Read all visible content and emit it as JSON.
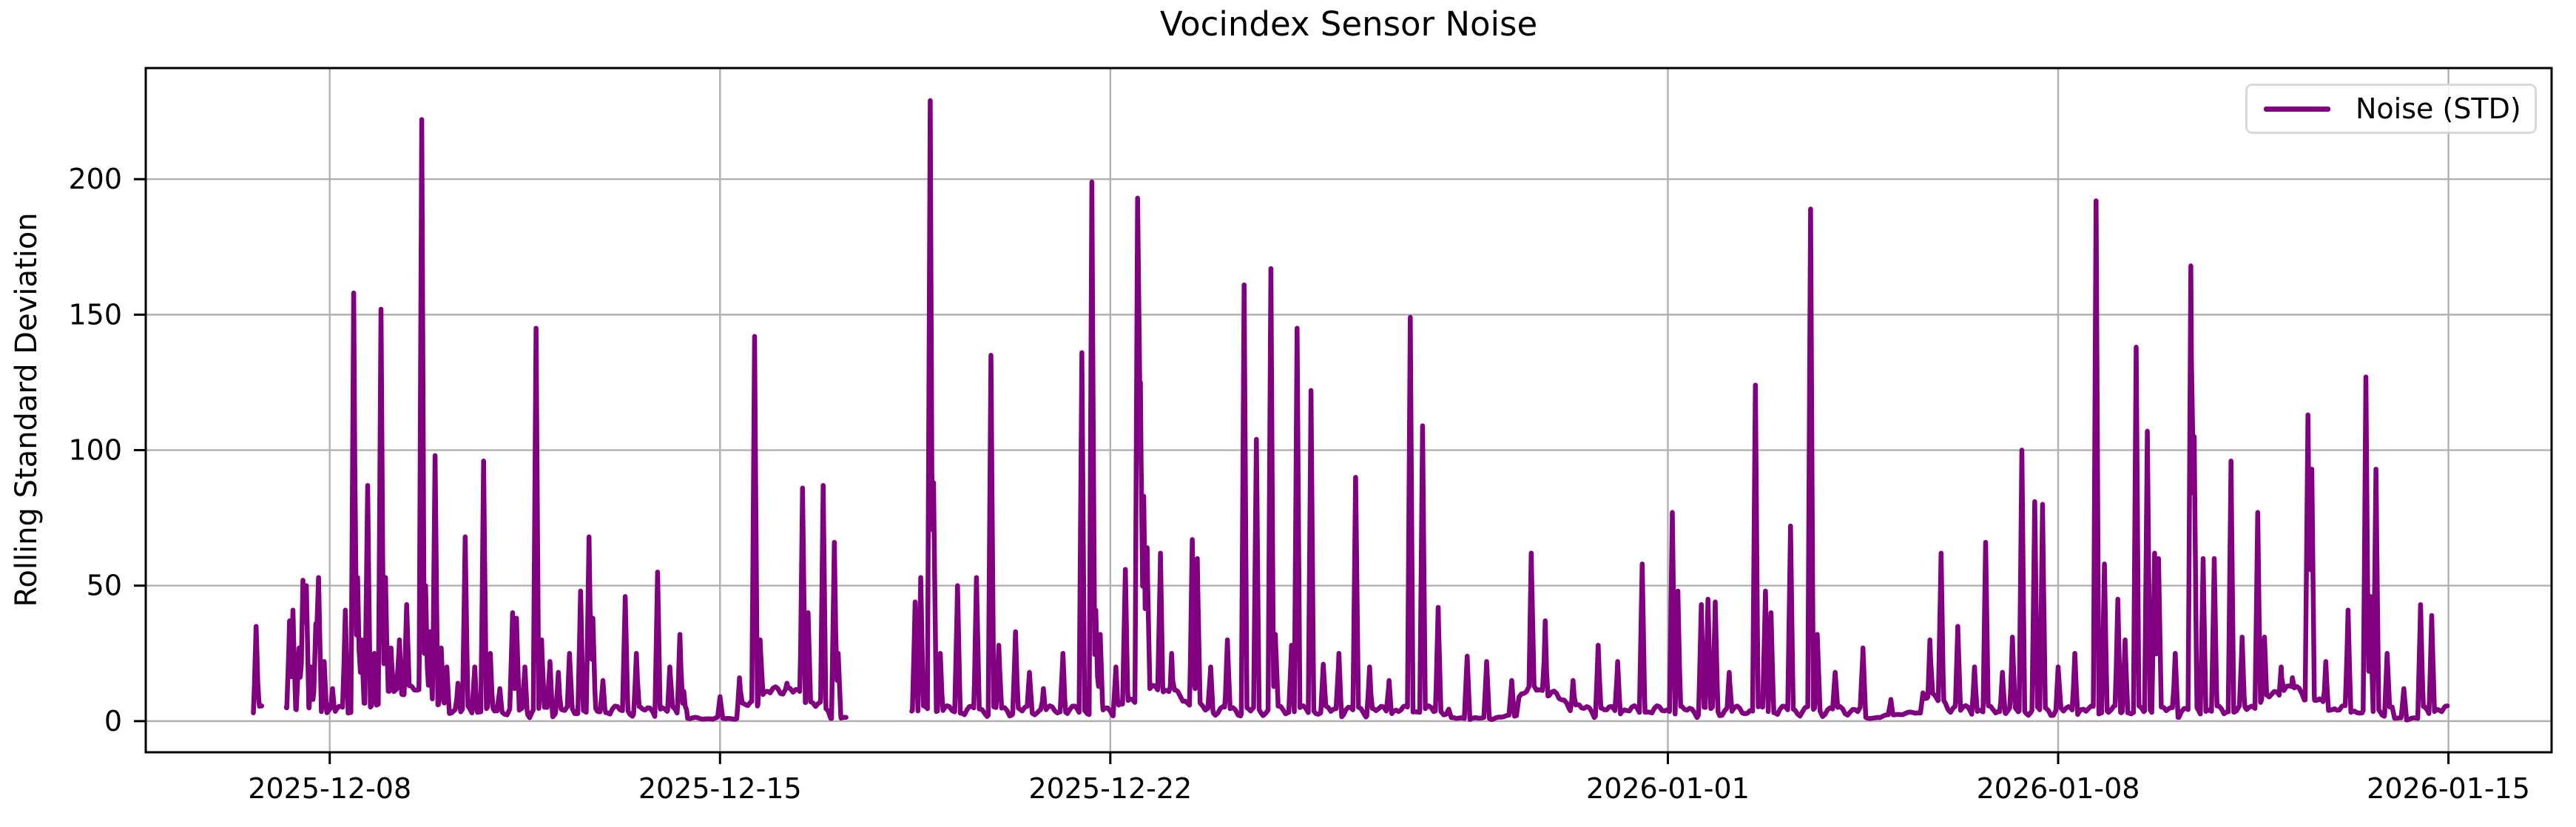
{
  "chart_data": {
    "type": "line",
    "title": "Vocindex Sensor Noise",
    "ylabel": "Rolling Standard Deviation",
    "xlabel": "",
    "legend": {
      "label": "Noise (STD)",
      "position": "upper right"
    },
    "line_color": "#800080",
    "grid": true,
    "grid_color": "#b0b0b0",
    "axis_color": "#000000",
    "background": "#ffffff",
    "x_axis": {
      "unit": "days relative to 2025-12-08",
      "min": -3.3,
      "max": 39.85,
      "ticks": [
        {
          "t": 0,
          "label": "2025-12-08"
        },
        {
          "t": 7,
          "label": "2025-12-15"
        },
        {
          "t": 14,
          "label": "2025-12-22"
        },
        {
          "t": 24,
          "label": "2026-01-01"
        },
        {
          "t": 31,
          "label": "2026-01-08"
        },
        {
          "t": 38,
          "label": "2026-01-15"
        }
      ]
    },
    "y_axis": {
      "min": -11.5,
      "max": 241,
      "ticks": [
        0,
        50,
        100,
        150,
        200
      ]
    },
    "series": [
      {
        "name": "Noise (STD)",
        "max_value": 229,
        "baseline_range": [
          0,
          10
        ],
        "sample_step_days": 0.045,
        "peak_half_width_days": 0.05,
        "segments": [
          [
            -1.35,
            -1.22
          ],
          [
            -0.78,
            9.26
          ],
          [
            10.44,
            37.95
          ]
        ],
        "quiet_ranges": [
          [
            6.4,
            7.3
          ],
          [
            8.95,
            9.26
          ],
          [
            20.1,
            21.3
          ],
          [
            27.55,
            28.55
          ],
          [
            37.0,
            37.45
          ]
        ],
        "baseline_model": {
          "base": 1.0,
          "a1": 2.6,
          "f1": 6.9,
          "p1": 0.5,
          "a2": 2.1,
          "f2": 15.3,
          "p2": 1.7,
          "bump_amp": 8,
          "bump_freq": 0.93,
          "bump_phase": 0.3,
          "bump_pow": 8,
          "quiet_factor": 0.25,
          "min": 0.4
        },
        "peaks": [
          [
            -1.32,
            35
          ],
          [
            -1.29,
            12
          ],
          [
            -0.72,
            37
          ],
          [
            -0.66,
            41
          ],
          [
            -0.55,
            27
          ],
          [
            -0.48,
            52
          ],
          [
            -0.42,
            50
          ],
          [
            -0.33,
            20
          ],
          [
            -0.25,
            36
          ],
          [
            -0.2,
            53
          ],
          [
            -0.1,
            22
          ],
          [
            0.05,
            12
          ],
          [
            0.28,
            41
          ],
          [
            0.43,
            158
          ],
          [
            0.5,
            53
          ],
          [
            0.57,
            30
          ],
          [
            0.68,
            87
          ],
          [
            0.8,
            25
          ],
          [
            0.92,
            152
          ],
          [
            1.0,
            53
          ],
          [
            1.1,
            27
          ],
          [
            1.25,
            30
          ],
          [
            1.38,
            43
          ],
          [
            1.65,
            222
          ],
          [
            1.72,
            50
          ],
          [
            1.8,
            33
          ],
          [
            1.89,
            98
          ],
          [
            2.0,
            27
          ],
          [
            2.1,
            20
          ],
          [
            2.3,
            14
          ],
          [
            2.43,
            68
          ],
          [
            2.6,
            20
          ],
          [
            2.76,
            96
          ],
          [
            2.88,
            25
          ],
          [
            3.05,
            12
          ],
          [
            3.28,
            40
          ],
          [
            3.35,
            38
          ],
          [
            3.5,
            20
          ],
          [
            3.7,
            145
          ],
          [
            3.8,
            30
          ],
          [
            3.95,
            22
          ],
          [
            4.1,
            18
          ],
          [
            4.3,
            25
          ],
          [
            4.5,
            48
          ],
          [
            4.65,
            68
          ],
          [
            4.72,
            38
          ],
          [
            4.9,
            15
          ],
          [
            5.3,
            46
          ],
          [
            5.5,
            25
          ],
          [
            5.88,
            55
          ],
          [
            6.1,
            20
          ],
          [
            6.28,
            32
          ],
          [
            6.35,
            11
          ],
          [
            7.0,
            9
          ],
          [
            7.35,
            16
          ],
          [
            7.62,
            142
          ],
          [
            7.72,
            30
          ],
          [
            7.95,
            12
          ],
          [
            8.2,
            14
          ],
          [
            8.48,
            86
          ],
          [
            8.58,
            40
          ],
          [
            8.85,
            87
          ],
          [
            9.05,
            66
          ],
          [
            9.12,
            25
          ],
          [
            10.5,
            44
          ],
          [
            10.6,
            53
          ],
          [
            10.77,
            229
          ],
          [
            10.83,
            88
          ],
          [
            10.95,
            25
          ],
          [
            11.26,
            50
          ],
          [
            11.6,
            53
          ],
          [
            11.86,
            135
          ],
          [
            12.0,
            28
          ],
          [
            12.3,
            33
          ],
          [
            12.55,
            18
          ],
          [
            12.8,
            12
          ],
          [
            13.15,
            25
          ],
          [
            13.49,
            136
          ],
          [
            13.67,
            199
          ],
          [
            13.74,
            41
          ],
          [
            13.82,
            32
          ],
          [
            14.1,
            20
          ],
          [
            14.27,
            56
          ],
          [
            14.49,
            193
          ],
          [
            14.54,
            125
          ],
          [
            14.6,
            83
          ],
          [
            14.66,
            64
          ],
          [
            14.9,
            62
          ],
          [
            15.1,
            25
          ],
          [
            15.47,
            67
          ],
          [
            15.56,
            60
          ],
          [
            15.8,
            20
          ],
          [
            16.1,
            30
          ],
          [
            16.4,
            161
          ],
          [
            16.62,
            104
          ],
          [
            16.88,
            167
          ],
          [
            16.96,
            32
          ],
          [
            17.25,
            28
          ],
          [
            17.35,
            145
          ],
          [
            17.6,
            122
          ],
          [
            17.82,
            21
          ],
          [
            18.1,
            25
          ],
          [
            18.4,
            90
          ],
          [
            18.65,
            20
          ],
          [
            19.0,
            15
          ],
          [
            19.38,
            149
          ],
          [
            19.6,
            109
          ],
          [
            19.88,
            42
          ],
          [
            20.4,
            24
          ],
          [
            20.75,
            22
          ],
          [
            21.2,
            15
          ],
          [
            21.55,
            62
          ],
          [
            21.8,
            37
          ],
          [
            22.3,
            15
          ],
          [
            22.75,
            28
          ],
          [
            23.1,
            22
          ],
          [
            23.54,
            58
          ],
          [
            24.08,
            77
          ],
          [
            24.18,
            48
          ],
          [
            24.6,
            43
          ],
          [
            24.72,
            45
          ],
          [
            24.85,
            44
          ],
          [
            25.1,
            18
          ],
          [
            25.57,
            124
          ],
          [
            25.75,
            48
          ],
          [
            25.85,
            40
          ],
          [
            26.2,
            72
          ],
          [
            26.56,
            189
          ],
          [
            26.68,
            32
          ],
          [
            27.0,
            18
          ],
          [
            27.5,
            27
          ],
          [
            28.0,
            8
          ],
          [
            28.7,
            30
          ],
          [
            28.9,
            62
          ],
          [
            29.2,
            35
          ],
          [
            29.5,
            20
          ],
          [
            29.7,
            66
          ],
          [
            30.0,
            18
          ],
          [
            30.18,
            31
          ],
          [
            30.35,
            100
          ],
          [
            30.58,
            81
          ],
          [
            30.72,
            80
          ],
          [
            31.0,
            20
          ],
          [
            31.3,
            25
          ],
          [
            31.68,
            192
          ],
          [
            31.83,
            58
          ],
          [
            32.07,
            45
          ],
          [
            32.2,
            30
          ],
          [
            32.4,
            138
          ],
          [
            32.6,
            107
          ],
          [
            32.73,
            62
          ],
          [
            32.8,
            60
          ],
          [
            33.1,
            25
          ],
          [
            33.38,
            168
          ],
          [
            33.44,
            105
          ],
          [
            33.6,
            60
          ],
          [
            33.8,
            60
          ],
          [
            34.1,
            96
          ],
          [
            34.3,
            31
          ],
          [
            34.58,
            77
          ],
          [
            34.7,
            31
          ],
          [
            35.0,
            20
          ],
          [
            35.2,
            16
          ],
          [
            35.48,
            113
          ],
          [
            35.55,
            93
          ],
          [
            35.8,
            22
          ],
          [
            36.2,
            41
          ],
          [
            36.52,
            127
          ],
          [
            36.6,
            46
          ],
          [
            36.7,
            93
          ],
          [
            36.9,
            25
          ],
          [
            37.2,
            12
          ],
          [
            37.5,
            43
          ],
          [
            37.7,
            39
          ],
          [
            37.93,
            5
          ]
        ]
      }
    ]
  }
}
